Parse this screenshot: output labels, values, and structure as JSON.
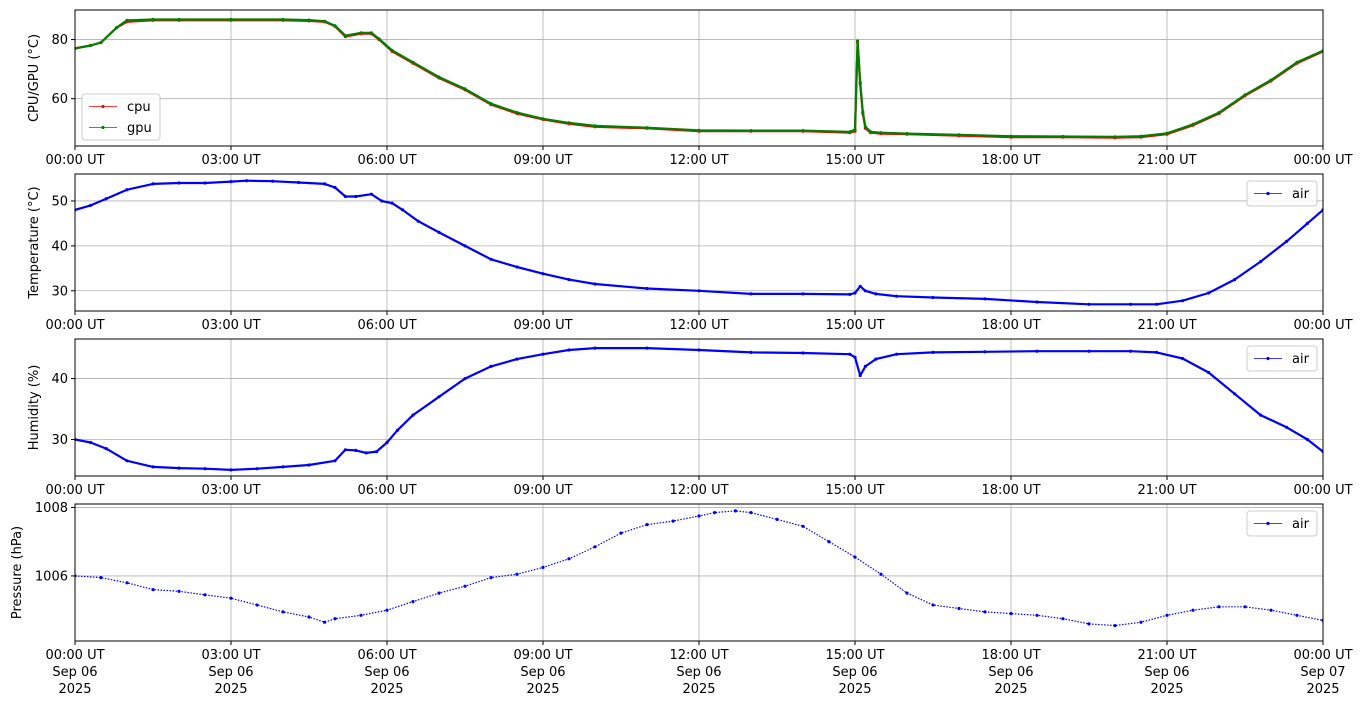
{
  "chart_data": [
    {
      "type": "line",
      "ylabel": "CPU/GPU (°C)",
      "xlim": [
        "00:00 UT",
        "24:00 UT"
      ],
      "x_ticks": [
        "00:00 UT",
        "03:00 UT",
        "06:00 UT",
        "09:00 UT",
        "12:00 UT",
        "15:00 UT",
        "18:00 UT",
        "21:00 UT",
        "00:00 UT"
      ],
      "ylim": [
        44,
        90
      ],
      "y_ticks": [
        60,
        80
      ],
      "grid": true,
      "legend": "lower-left",
      "series": [
        {
          "name": "cpu",
          "color": "#ff0000",
          "x": [
            0,
            0.3,
            0.5,
            0.8,
            1.0,
            1.5,
            2.0,
            3.0,
            4.0,
            4.5,
            4.8,
            5.0,
            5.2,
            5.5,
            5.7,
            5.85,
            6.1,
            6.5,
            7.0,
            7.5,
            8.0,
            8.5,
            9.0,
            9.5,
            10.0,
            11.0,
            12.0,
            13.0,
            14.0,
            14.9,
            15.0,
            15.05,
            15.1,
            15.15,
            15.2,
            15.3,
            15.5,
            16.0,
            17.0,
            18.0,
            19.0,
            20.0,
            20.5,
            21.0,
            21.5,
            22.0,
            22.5,
            23.0,
            23.5,
            24.0
          ],
          "y": [
            77,
            78,
            79,
            84,
            86,
            86.5,
            86.5,
            86.5,
            86.5,
            86.3,
            86,
            84.5,
            81,
            82,
            82,
            80,
            76,
            72,
            67,
            63,
            58,
            55,
            53,
            51.5,
            50.5,
            50,
            49,
            49,
            49,
            48.5,
            49,
            79,
            65,
            55,
            50,
            48.5,
            48.2,
            48,
            47.5,
            47,
            47,
            46.8,
            47,
            48,
            51,
            55,
            61,
            66,
            72,
            76
          ]
        },
        {
          "name": "gpu",
          "color": "#008000",
          "x": [
            0,
            0.3,
            0.5,
            0.8,
            1.0,
            1.5,
            2.0,
            3.0,
            4.0,
            4.5,
            4.8,
            5.0,
            5.2,
            5.5,
            5.7,
            5.85,
            6.1,
            6.5,
            7.0,
            7.5,
            8.0,
            8.5,
            9.0,
            9.5,
            10.0,
            11.0,
            12.0,
            13.0,
            14.0,
            14.9,
            15.0,
            15.05,
            15.1,
            15.15,
            15.2,
            15.3,
            15.5,
            16.0,
            17.0,
            18.0,
            19.0,
            20.0,
            20.5,
            21.0,
            21.5,
            22.0,
            22.5,
            23.0,
            23.5,
            24.0
          ],
          "y": [
            77,
            78,
            79,
            84,
            86.5,
            86.8,
            86.8,
            86.8,
            86.8,
            86.6,
            86.2,
            84.7,
            81.3,
            82.3,
            82.3,
            80.2,
            76.3,
            72.3,
            67.3,
            63.3,
            58.3,
            55.3,
            53.2,
            51.8,
            50.8,
            50.2,
            49.3,
            49.2,
            49.2,
            48.8,
            49.5,
            79.5,
            65.5,
            55.5,
            50.5,
            48.8,
            48.5,
            48.2,
            47.8,
            47.3,
            47.2,
            47.1,
            47.3,
            48.3,
            51.3,
            55.3,
            61.3,
            66.3,
            72.3,
            76.2
          ]
        }
      ]
    },
    {
      "type": "line",
      "ylabel": "Temperature (°C)",
      "xlim": [
        "00:00 UT",
        "24:00 UT"
      ],
      "x_ticks": [
        "00:00 UT",
        "03:00 UT",
        "06:00 UT",
        "09:00 UT",
        "12:00 UT",
        "15:00 UT",
        "18:00 UT",
        "21:00 UT",
        "00:00 UT"
      ],
      "ylim": [
        25.5,
        56
      ],
      "y_ticks": [
        30,
        40,
        50
      ],
      "grid": true,
      "legend": "top-right",
      "series": [
        {
          "name": "air",
          "color": "#0000ff",
          "x": [
            0,
            0.3,
            0.6,
            1.0,
            1.5,
            2.0,
            2.5,
            3.0,
            3.3,
            3.8,
            4.3,
            4.8,
            5.0,
            5.2,
            5.4,
            5.7,
            5.9,
            6.1,
            6.3,
            6.6,
            7.0,
            7.5,
            8.0,
            8.5,
            9.0,
            9.5,
            10.0,
            11.0,
            12.0,
            13.0,
            14.0,
            14.9,
            15.0,
            15.1,
            15.2,
            15.4,
            15.8,
            16.5,
            17.5,
            18.5,
            19.5,
            20.3,
            20.8,
            21.3,
            21.8,
            22.3,
            22.8,
            23.3,
            23.7,
            24.0
          ],
          "y": [
            48,
            49,
            50.5,
            52.5,
            53.8,
            54,
            54,
            54.3,
            54.5,
            54.4,
            54.1,
            53.8,
            53,
            51,
            51,
            51.5,
            50,
            49.5,
            48,
            45.5,
            43,
            40,
            37,
            35.3,
            33.8,
            32.5,
            31.5,
            30.5,
            30,
            29.3,
            29.3,
            29.2,
            29.5,
            31,
            30,
            29.3,
            28.8,
            28.5,
            28.2,
            27.5,
            27,
            27,
            27,
            27.8,
            29.5,
            32.5,
            36.5,
            41,
            45,
            48
          ]
        }
      ]
    },
    {
      "type": "line",
      "ylabel": "Humidity (%)",
      "xlim": [
        "00:00 UT",
        "24:00 UT"
      ],
      "x_ticks": [
        "00:00 UT",
        "03:00 UT",
        "06:00 UT",
        "09:00 UT",
        "12:00 UT",
        "15:00 UT",
        "18:00 UT",
        "21:00 UT",
        "00:00 UT"
      ],
      "ylim": [
        24,
        46.5
      ],
      "y_ticks": [
        30,
        40
      ],
      "grid": true,
      "legend": "top-right",
      "series": [
        {
          "name": "air",
          "color": "#0000ff",
          "x": [
            0,
            0.3,
            0.6,
            1.0,
            1.5,
            2.0,
            2.5,
            3.0,
            3.5,
            4.0,
            4.5,
            5.0,
            5.2,
            5.4,
            5.6,
            5.8,
            6.0,
            6.2,
            6.5,
            7.0,
            7.5,
            8.0,
            8.5,
            9.0,
            9.5,
            10.0,
            11.0,
            12.0,
            13.0,
            14.0,
            14.9,
            15.0,
            15.1,
            15.2,
            15.4,
            15.8,
            16.5,
            17.5,
            18.5,
            19.5,
            20.3,
            20.8,
            21.3,
            21.8,
            22.3,
            22.8,
            23.3,
            23.7,
            24.0
          ],
          "y": [
            30,
            29.5,
            28.5,
            26.5,
            25.5,
            25.3,
            25.2,
            25,
            25.2,
            25.5,
            25.8,
            26.5,
            28.3,
            28.2,
            27.8,
            28,
            29.5,
            31.5,
            34,
            37,
            40,
            42,
            43.2,
            44,
            44.7,
            45,
            45,
            44.7,
            44.3,
            44.2,
            44,
            43.5,
            40.5,
            42,
            43.2,
            44,
            44.3,
            44.4,
            44.5,
            44.5,
            44.5,
            44.3,
            43.3,
            41,
            37.5,
            34,
            32,
            30,
            28
          ]
        }
      ]
    },
    {
      "type": "scatter",
      "ylabel": "Pressure (hPa)",
      "xlim": [
        "00:00 UT Sep 06 2025",
        "00:00 UT Sep 07 2025"
      ],
      "x_ticks": [
        "00:00 UT",
        "03:00 UT",
        "06:00 UT",
        "09:00 UT",
        "12:00 UT",
        "15:00 UT",
        "18:00 UT",
        "21:00 UT",
        "00:00 UT"
      ],
      "x_tick_dates": [
        "Sep 06",
        "Sep 06",
        "Sep 06",
        "Sep 06",
        "Sep 06",
        "Sep 06",
        "Sep 06",
        "Sep 06",
        "Sep 07"
      ],
      "x_tick_years": [
        "2025",
        "2025",
        "2025",
        "2025",
        "2025",
        "2025",
        "2025",
        "2025",
        "2025"
      ],
      "ylim": [
        1004.1,
        1008.1
      ],
      "y_ticks": [
        1006,
        1008
      ],
      "grid": true,
      "legend": "top-right",
      "series": [
        {
          "name": "air",
          "color": "#0000ff",
          "x": [
            0,
            0.5,
            1.0,
            1.5,
            2.0,
            2.5,
            3.0,
            3.5,
            4.0,
            4.5,
            4.8,
            5.0,
            5.5,
            6.0,
            6.5,
            7.0,
            7.5,
            8.0,
            8.5,
            9.0,
            9.5,
            10.0,
            10.5,
            11.0,
            11.5,
            12.0,
            12.3,
            12.7,
            13.0,
            13.5,
            14.0,
            14.5,
            15.0,
            15.5,
            16.0,
            16.5,
            17.0,
            17.5,
            18.0,
            18.5,
            19.0,
            19.5,
            20.0,
            20.5,
            21.0,
            21.5,
            22.0,
            22.5,
            23.0,
            23.5,
            24.0
          ],
          "y": [
            1006,
            1005.95,
            1005.8,
            1005.6,
            1005.55,
            1005.45,
            1005.35,
            1005.15,
            1004.95,
            1004.8,
            1004.65,
            1004.75,
            1004.85,
            1005.0,
            1005.25,
            1005.5,
            1005.7,
            1005.95,
            1006.05,
            1006.25,
            1006.5,
            1006.85,
            1007.25,
            1007.5,
            1007.6,
            1007.75,
            1007.85,
            1007.9,
            1007.85,
            1007.65,
            1007.45,
            1007.0,
            1006.55,
            1006.05,
            1005.5,
            1005.15,
            1005.05,
            1004.95,
            1004.9,
            1004.85,
            1004.75,
            1004.6,
            1004.55,
            1004.65,
            1004.85,
            1005.0,
            1005.1,
            1005.1,
            1005.0,
            1004.85,
            1004.7
          ]
        }
      ]
    }
  ]
}
